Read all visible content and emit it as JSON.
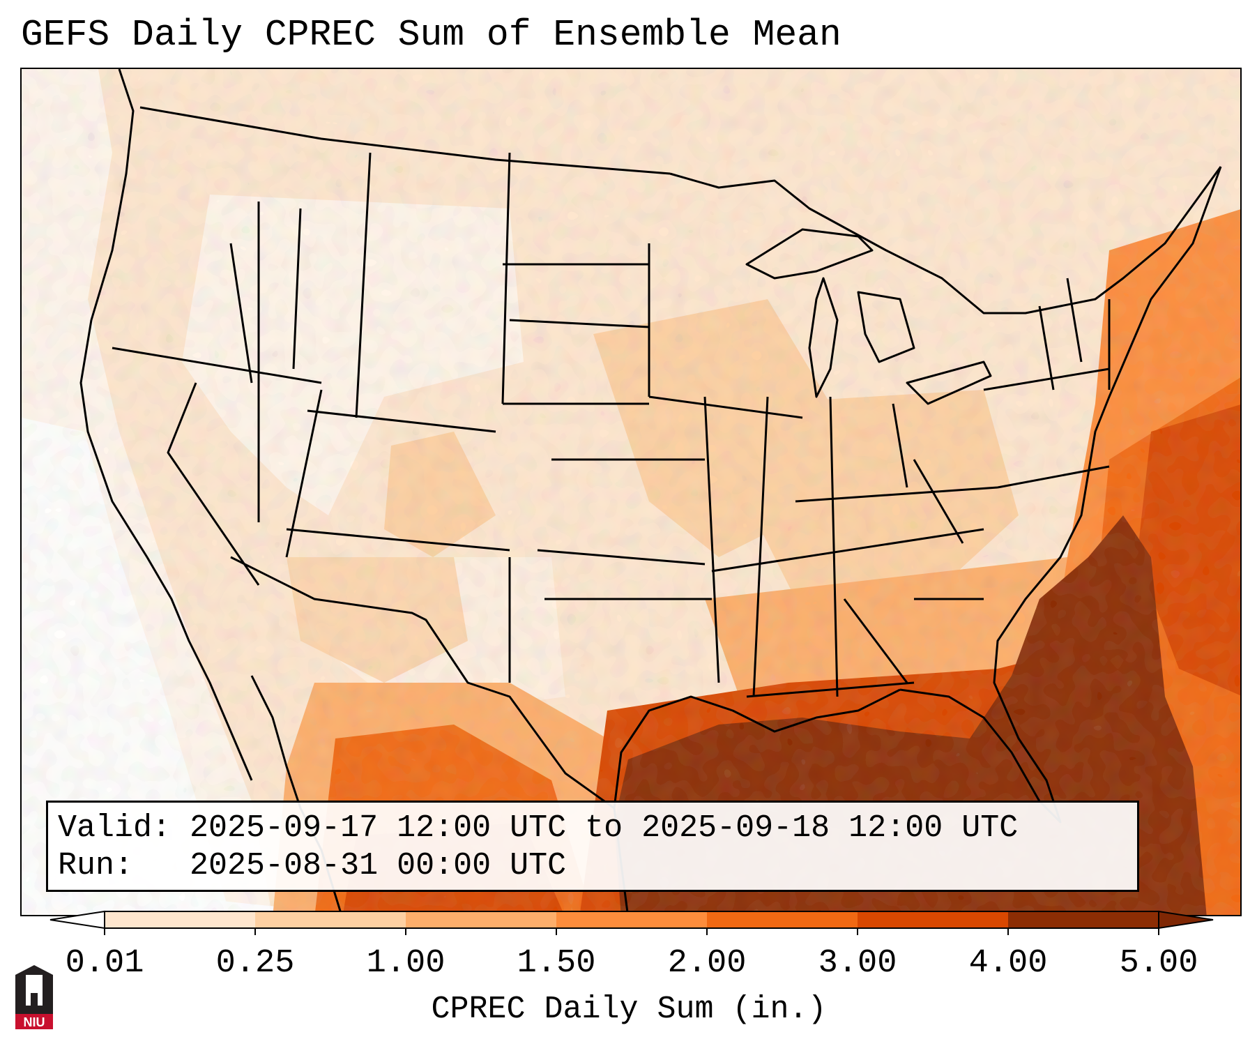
{
  "title": "GEFS Daily CPREC Sum of Ensemble Mean",
  "info": {
    "valid_line": "Valid: 2025-09-17 12:00 UTC to 2025-09-18 12:00 UTC",
    "run_line": "Run:   2025-08-31 00:00 UTC"
  },
  "colorbar": {
    "title": "CPREC Daily Sum (in.)",
    "ticks": [
      "0.01",
      "0.25",
      "1.00",
      "1.50",
      "2.00",
      "3.00",
      "4.00",
      "5.00"
    ],
    "colors": [
      "#fff5eb",
      "#fee6ce",
      "#fdd0a2",
      "#fdae6b",
      "#fd8d3c",
      "#f16913",
      "#d94801",
      "#8c2d04"
    ],
    "under_color": "#ffffff",
    "over_color": "#7f2704"
  },
  "logo": {
    "text": "NIU",
    "color": "#c8102e"
  },
  "colors": {
    "ocean_max": "#8c2d04",
    "border": "#000000"
  }
}
